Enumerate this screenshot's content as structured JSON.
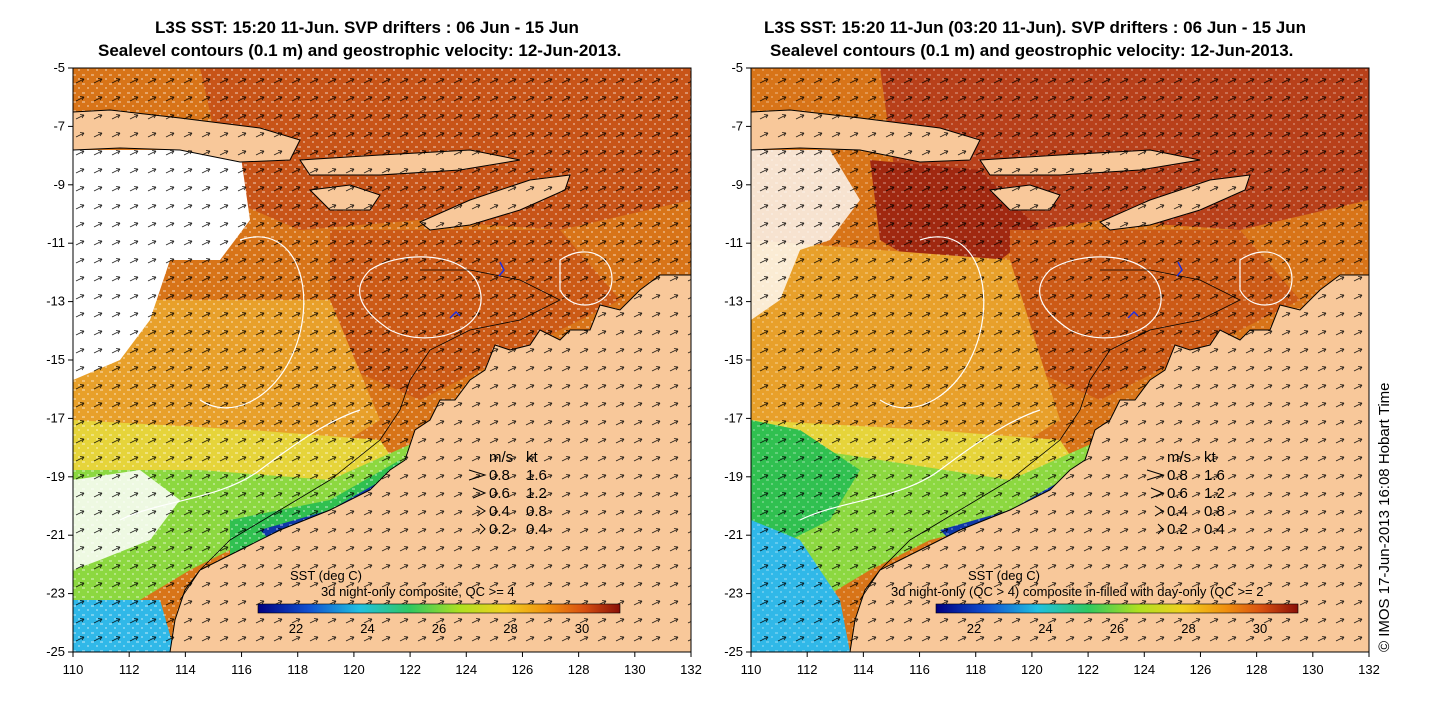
{
  "panels": [
    {
      "title_line1": "L3S SST: 15:20 11-Jun. SVP drifters : 06 Jun - 15 Jun",
      "title_line2": "Sealevel contours (0.1 m) and geostrophic velocity: 12-Jun-2013.",
      "x_ticks": [
        "110",
        "112",
        "114",
        "116",
        "118",
        "120",
        "122",
        "124",
        "126",
        "128",
        "130",
        "132"
      ],
      "y_ticks": [
        "-5",
        "-7",
        "-9",
        "-11",
        "-13",
        "-15",
        "-17",
        "-19",
        "-21",
        "-23",
        "-25"
      ],
      "legend_header": [
        "m/s",
        "kt"
      ],
      "legend_rows": [
        [
          "0.8",
          "1.6"
        ],
        [
          "0.6",
          "1.2"
        ],
        [
          "0.4",
          "0.8"
        ],
        [
          "0.2",
          "0.4"
        ]
      ],
      "colorbar_title": "SST (deg C)",
      "colorbar_subtitle": "3d night-only composite, QC >= 4",
      "colorbar_ticks": [
        "22",
        "24",
        "26",
        "28",
        "30"
      ]
    },
    {
      "title_line1": "L3S SST: 15:20 11-Jun (03:20 11-Jun). SVP drifters : 06 Jun - 15 Jun",
      "title_line2": "Sealevel contours (0.1 m) and geostrophic velocity: 12-Jun-2013.",
      "x_ticks": [
        "110",
        "112",
        "114",
        "116",
        "118",
        "120",
        "122",
        "124",
        "126",
        "128",
        "130",
        "132"
      ],
      "y_ticks": [
        "-5",
        "-7",
        "-9",
        "-11",
        "-13",
        "-15",
        "-17",
        "-19",
        "-21",
        "-23",
        "-25"
      ],
      "legend_header": [
        "m/s",
        "kt"
      ],
      "legend_rows": [
        [
          "0.8",
          "1.6"
        ],
        [
          "0.6",
          "1.2"
        ],
        [
          "0.4",
          "0.8"
        ],
        [
          "0.2",
          "0.4"
        ]
      ],
      "colorbar_title": "SST (deg C)",
      "colorbar_subtitle": "3d night-only (QC > 4) composite in-filled with day-only (QC >= 2",
      "colorbar_ticks": [
        "22",
        "24",
        "26",
        "28",
        "30"
      ]
    }
  ],
  "credit": "© IMOS 17-Jun-2013 16:08 Hobart Time",
  "colors": {
    "land": "#f8c89a",
    "warm_dark": "#a82810",
    "warm": "#d86a10",
    "orange": "#e89a1e",
    "yellow": "#e8d020",
    "green": "#30c040",
    "cyan": "#20b0e0",
    "blue": "#1030a0",
    "coast": "#000000",
    "contour": "#ffffff",
    "drifter": "#2030e0"
  }
}
